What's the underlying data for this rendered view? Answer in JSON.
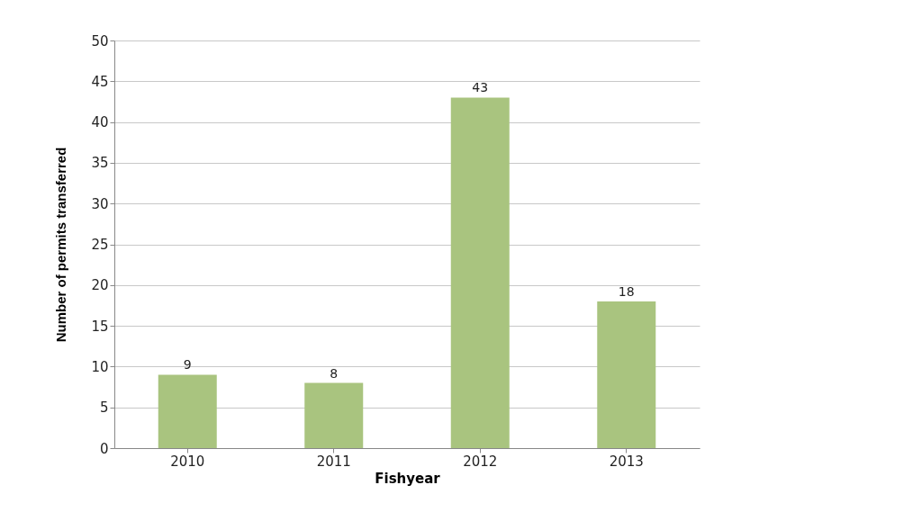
{
  "chart_data": {
    "type": "bar",
    "xlabel": "Fishyear",
    "ylabel": "Number of permits transferred",
    "categories": [
      "2010",
      "2011",
      "2012",
      "2013"
    ],
    "values": [
      9,
      8,
      43,
      18
    ],
    "color": "#a9c47f",
    "ylim": [
      0,
      50
    ],
    "yticks": [
      0,
      5,
      10,
      15,
      20,
      25,
      30,
      35,
      40,
      45,
      50
    ],
    "grid": "y",
    "data_labels": true
  }
}
